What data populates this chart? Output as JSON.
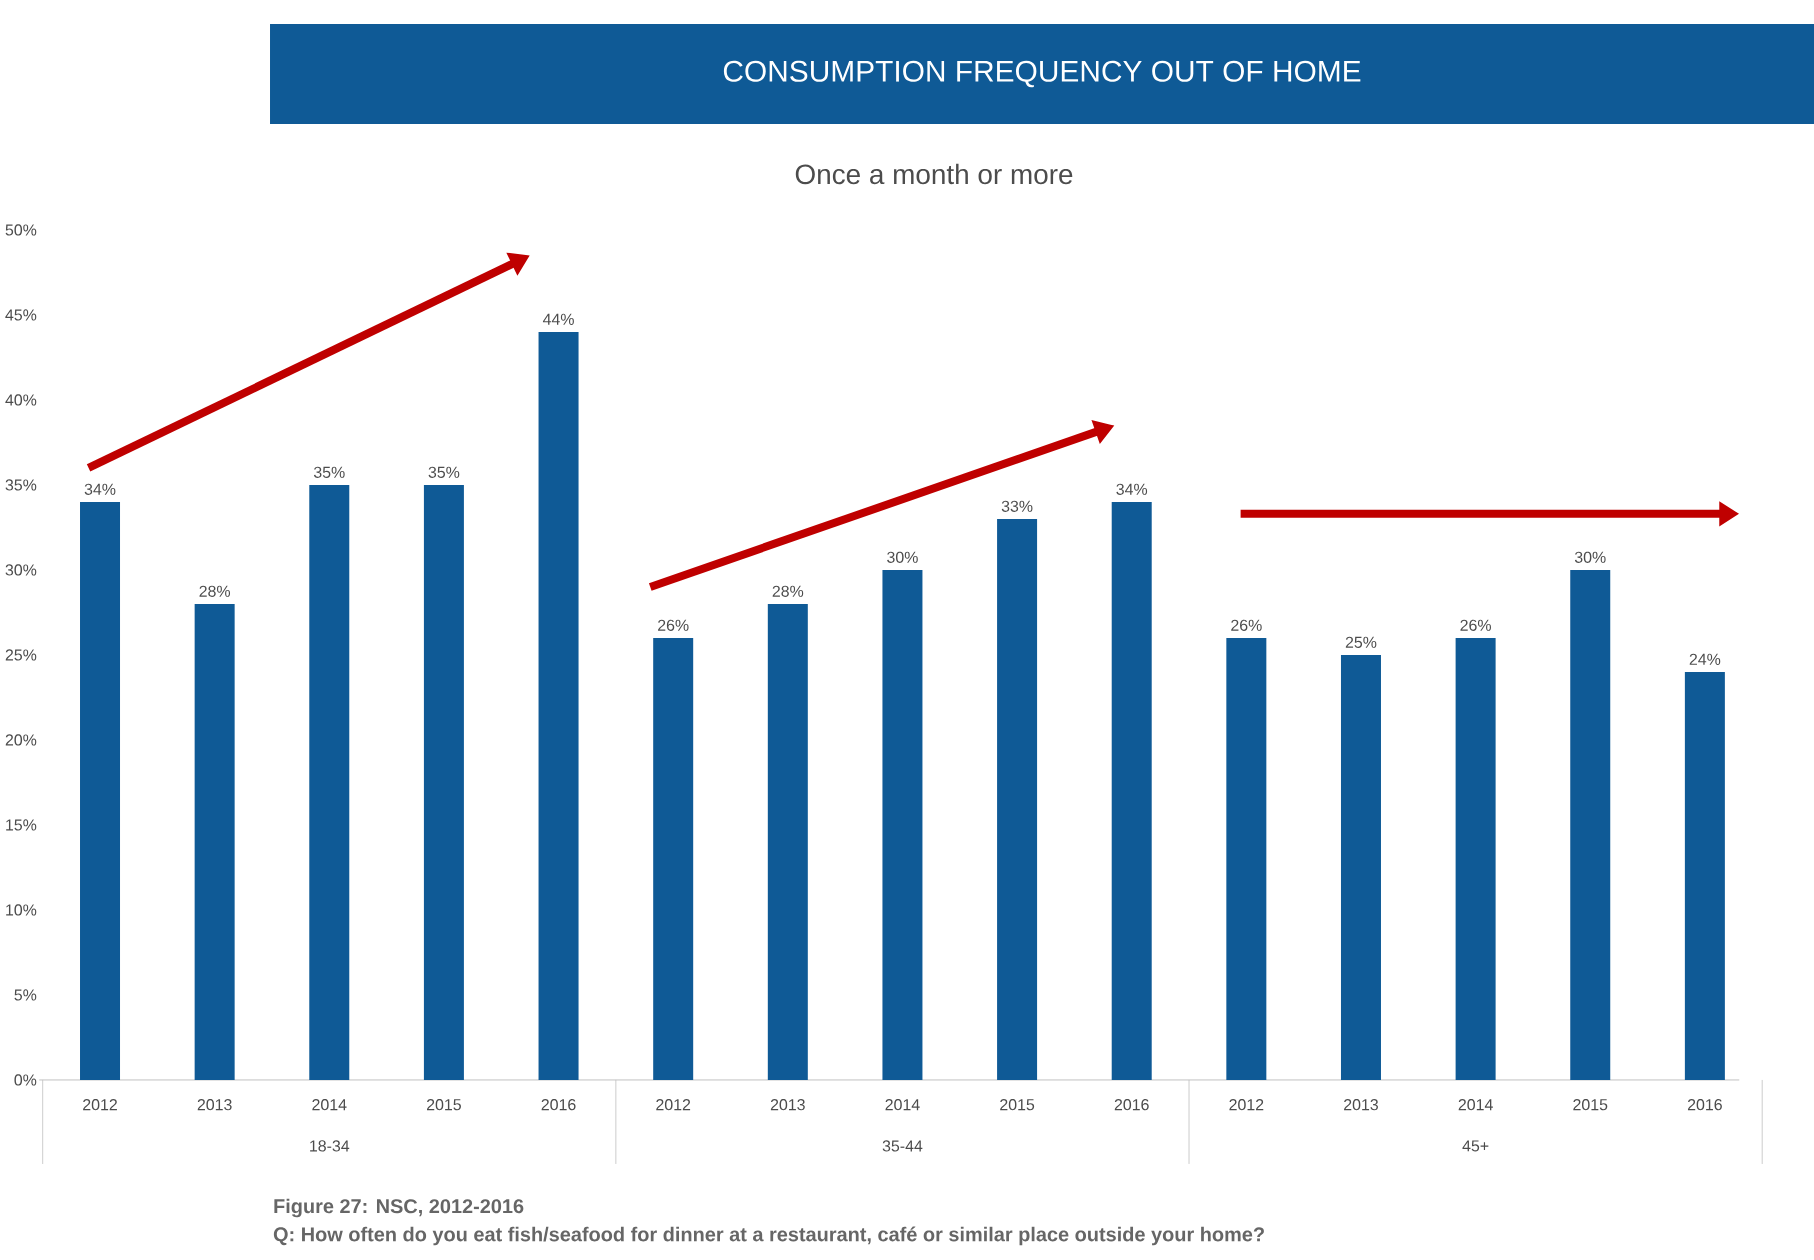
{
  "chart_data": {
    "type": "bar",
    "title": "CONSUMPTION FREQUENCY OUT OF HOME",
    "subtitle": "Once a month or more",
    "categories": [
      "2012",
      "2013",
      "2014",
      "2015",
      "2016",
      "2012",
      "2013",
      "2014",
      "2015",
      "2016",
      "2012",
      "2013",
      "2014",
      "2015",
      "2016"
    ],
    "values": [
      34,
      28,
      35,
      35,
      44,
      26,
      28,
      30,
      33,
      34,
      26,
      25,
      26,
      30,
      24
    ],
    "value_labels": [
      "34%",
      "28%",
      "35%",
      "35%",
      "44%",
      "26%",
      "28%",
      "30%",
      "33%",
      "34%",
      "26%",
      "25%",
      "26%",
      "30%",
      "24%"
    ],
    "color": "#0f5a96",
    "ylim": [
      0,
      50
    ],
    "yticks": [
      {
        "value": 0,
        "label": "0%"
      },
      {
        "value": 5,
        "label": "5%"
      },
      {
        "value": 10,
        "label": "10%"
      },
      {
        "value": 15,
        "label": "15%"
      },
      {
        "value": 20,
        "label": "20%"
      },
      {
        "value": 25,
        "label": "25%"
      },
      {
        "value": 30,
        "label": "30%"
      },
      {
        "value": 35,
        "label": "35%"
      },
      {
        "value": 40,
        "label": "40%"
      },
      {
        "value": 45,
        "label": "45%"
      },
      {
        "value": 50,
        "label": "50%"
      }
    ],
    "annotations": [
      "18-34",
      "35-44",
      "45+",
      "Figure 27: NSC, 2012-2016",
      "Q: How often do you eat fish/seafood for dinner at a restaurant, café or similar place outside your home?"
    ]
  }
}
